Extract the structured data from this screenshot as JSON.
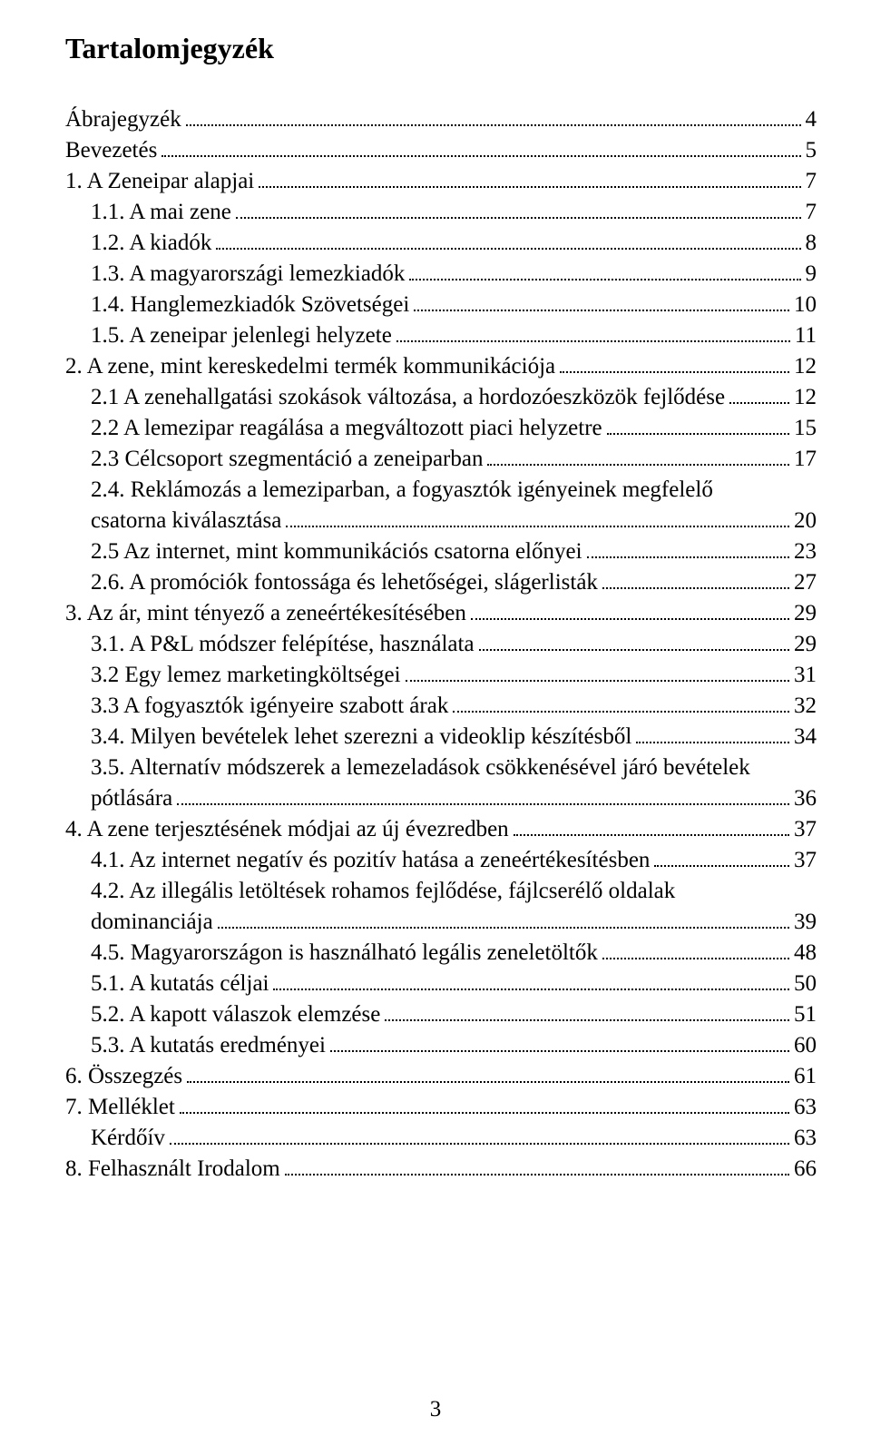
{
  "title": "Tartalomjegyzék",
  "page_number": "3",
  "colors": {
    "text": "#000000",
    "background": "#ffffff",
    "dots": "#000000"
  },
  "typography": {
    "family": "Times New Roman",
    "title_fontsize_pt": 24,
    "body_fontsize_pt": 19,
    "line_height": 1.36
  },
  "toc": [
    {
      "label": "Ábrajegyzék",
      "page": "4",
      "indent": 0
    },
    {
      "label": "Bevezetés",
      "page": "5",
      "indent": 0
    },
    {
      "label": "1. A Zeneipar alapjai",
      "page": "7",
      "indent": 0
    },
    {
      "label": "1.1. A mai zene",
      "page": "7",
      "indent": 1
    },
    {
      "label": "1.2. A kiadók",
      "page": "8",
      "indent": 1
    },
    {
      "label": "1.3. A magyarországi lemezkiadók",
      "page": "9",
      "indent": 1
    },
    {
      "label": "1.4. Hanglemezkiadók Szövetségei",
      "page": "10",
      "indent": 1
    },
    {
      "label": "1.5. A zeneipar jelenlegi helyzete",
      "page": "11",
      "indent": 1
    },
    {
      "label": "2. A zene, mint kereskedelmi termék kommunikációja",
      "page": "12",
      "indent": 0
    },
    {
      "label": "2.1 A zenehallgatási szokások változása, a hordozóeszközök fejlődése",
      "page": "12",
      "indent": 1
    },
    {
      "label": "2.2 A lemezipar reagálása a megváltozott piaci helyzetre",
      "page": "15",
      "indent": 1
    },
    {
      "label": "2.3 Célcsoport szegmentáció a zeneiparban",
      "page": "17",
      "indent": 1
    },
    {
      "label_line1": "2.4. Reklámozás a lemeziparban, a fogyasztók igényeinek megfelelő",
      "label_line2": "csatorna kiválasztása",
      "page": "20",
      "indent": 1,
      "multiline": true
    },
    {
      "label": "2.5 Az internet, mint kommunikációs csatorna előnyei",
      "page": "23",
      "indent": 1
    },
    {
      "label": "2.6. A promóciók fontossága és lehetőségei, slágerlisták",
      "page": "27",
      "indent": 1
    },
    {
      "label": "3. Az ár, mint tényező a zeneértékesítésében",
      "page": "29",
      "indent": 0
    },
    {
      "label": "3.1. A P&L módszer felépítése, használata",
      "page": "29",
      "indent": 1
    },
    {
      "label": "3.2 Egy lemez marketingköltségei",
      "page": "31",
      "indent": 1
    },
    {
      "label": "3.3  A fogyasztók igényeire szabott árak",
      "page": "32",
      "indent": 1
    },
    {
      "label": "3.4. Milyen bevételek lehet szerezni a videoklip készítésből",
      "page": "34",
      "indent": 1
    },
    {
      "label_line1": "3.5. Alternatív módszerek a lemezeladások csökkenésével járó bevételek",
      "label_line2": "pótlására",
      "page": "36",
      "indent": 1,
      "multiline": true
    },
    {
      "label": "4. A zene terjesztésének módjai az új évezredben",
      "page": "37",
      "indent": 0
    },
    {
      "label": "4.1. Az internet negatív és pozitív hatása a zeneértékesítésben",
      "page": "37",
      "indent": 1
    },
    {
      "label_line1": "4.2. Az illegális letöltések rohamos fejlődése, fájlcserélő oldalak",
      "label_line2": "dominanciája",
      "page": "39",
      "indent": 1,
      "multiline": true
    },
    {
      "label": "4.5. Magyarországon is használható legális zeneletöltők",
      "page": "48",
      "indent": 1
    },
    {
      "label": "5.1. A kutatás céljai",
      "page": "50",
      "indent": 1
    },
    {
      "label": "5.2. A kapott válaszok elemzése",
      "page": "51",
      "indent": 1
    },
    {
      "label": "5.3. A kutatás eredményei",
      "page": "60",
      "indent": 1
    },
    {
      "label": "6. Összegzés",
      "page": "61",
      "indent": 0
    },
    {
      "label": "7. Melléklet",
      "page": "63",
      "indent": 0
    },
    {
      "label": "Kérdőív",
      "page": "63",
      "indent": 1
    },
    {
      "label": "8. Felhasznált Irodalom",
      "page": "66",
      "indent": 0
    }
  ]
}
